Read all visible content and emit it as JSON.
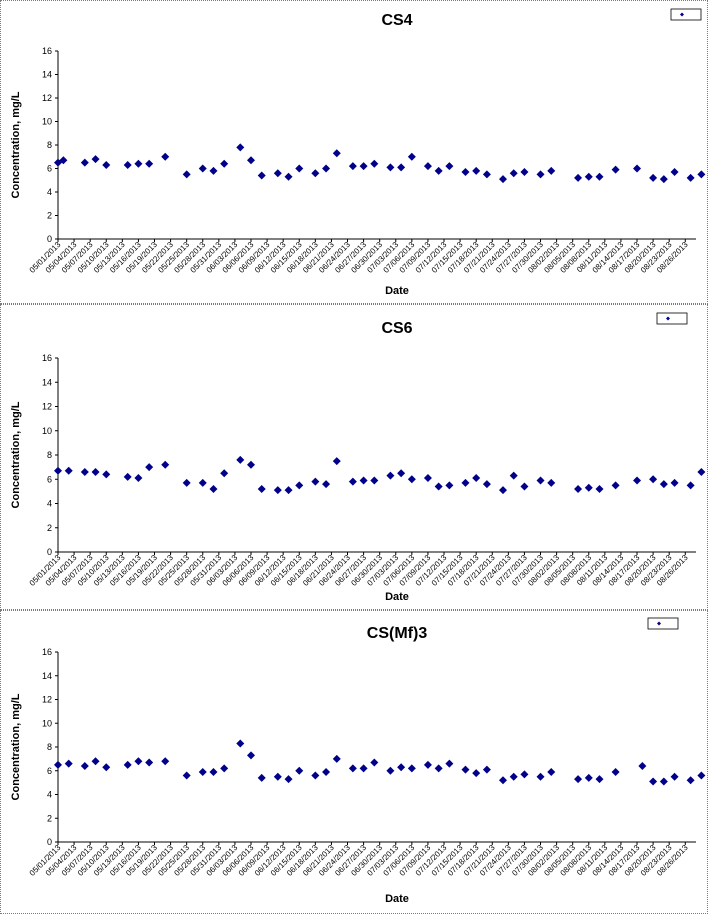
{
  "chart_data": [
    {
      "type": "scatter",
      "title": "CS4",
      "xlabel": "Date",
      "ylabel": "Concentration, mg/L",
      "ylim": [
        0,
        16
      ],
      "yticks": [
        0,
        2,
        4,
        6,
        8,
        10,
        12,
        14,
        16
      ],
      "xlim": [
        "2013-05-01",
        "2013-08-28"
      ],
      "x_tick_labels": [
        "05/01/2013",
        "05/04/2013",
        "05/07/2013",
        "05/10/2013",
        "05/13/2013",
        "05/16/2013",
        "05/19/2013",
        "05/22/2013",
        "05/25/2013",
        "05/28/2013",
        "05/31/2013",
        "06/03/2013",
        "06/06/2013",
        "06/09/2013",
        "06/12/2013",
        "06/15/2013",
        "06/18/2013",
        "06/21/2013",
        "06/24/2013",
        "06/27/2013",
        "06/30/2013",
        "07/03/2013",
        "07/06/2013",
        "07/09/2013",
        "07/12/2013",
        "07/15/2013",
        "07/18/2013",
        "07/21/2013",
        "07/24/2013",
        "07/27/2013",
        "07/30/2013",
        "08/02/2013",
        "08/05/2013",
        "08/08/2013",
        "08/11/2013",
        "08/14/2013",
        "08/17/2013",
        "08/20/2013",
        "08/23/2013",
        "08/26/2013"
      ],
      "grid": false,
      "legend_position": "top-right",
      "legend_entries": [
        ""
      ],
      "marker": "diamond",
      "color": "#00008b",
      "series": [
        {
          "points": [
            [
              "2013-05-01",
              6.5
            ],
            [
              "2013-05-02",
              6.7
            ],
            [
              "2013-05-06",
              6.5
            ],
            [
              "2013-05-08",
              6.8
            ],
            [
              "2013-05-10",
              6.3
            ],
            [
              "2013-05-14",
              6.3
            ],
            [
              "2013-05-16",
              6.4
            ],
            [
              "2013-05-18",
              6.4
            ],
            [
              "2013-05-21",
              7.0
            ],
            [
              "2013-05-25",
              5.5
            ],
            [
              "2013-05-28",
              6.0
            ],
            [
              "2013-05-30",
              5.8
            ],
            [
              "2013-06-01",
              6.4
            ],
            [
              "2013-06-04",
              7.8
            ],
            [
              "2013-06-06",
              6.7
            ],
            [
              "2013-06-08",
              5.4
            ],
            [
              "2013-06-11",
              5.6
            ],
            [
              "2013-06-13",
              5.3
            ],
            [
              "2013-06-15",
              6.0
            ],
            [
              "2013-06-18",
              5.6
            ],
            [
              "2013-06-20",
              6.0
            ],
            [
              "2013-06-22",
              7.3
            ],
            [
              "2013-06-25",
              6.2
            ],
            [
              "2013-06-27",
              6.2
            ],
            [
              "2013-06-29",
              6.4
            ],
            [
              "2013-07-02",
              6.1
            ],
            [
              "2013-07-04",
              6.1
            ],
            [
              "2013-07-06",
              7.0
            ],
            [
              "2013-07-09",
              6.2
            ],
            [
              "2013-07-11",
              5.8
            ],
            [
              "2013-07-13",
              6.2
            ],
            [
              "2013-07-16",
              5.7
            ],
            [
              "2013-07-18",
              5.8
            ],
            [
              "2013-07-20",
              5.5
            ],
            [
              "2013-07-23",
              5.1
            ],
            [
              "2013-07-25",
              5.6
            ],
            [
              "2013-07-27",
              5.7
            ],
            [
              "2013-07-30",
              5.5
            ],
            [
              "2013-08-01",
              5.8
            ],
            [
              "2013-08-06",
              5.2
            ],
            [
              "2013-08-08",
              5.3
            ],
            [
              "2013-08-10",
              5.3
            ],
            [
              "2013-08-13",
              5.9
            ],
            [
              "2013-08-17",
              6.0
            ],
            [
              "2013-08-20",
              5.2
            ],
            [
              "2013-08-22",
              5.1
            ],
            [
              "2013-08-24",
              5.7
            ],
            [
              "2013-08-27",
              5.2
            ],
            [
              "2013-08-29",
              5.5
            ]
          ]
        }
      ]
    },
    {
      "type": "scatter",
      "title": "CS6",
      "xlabel": "Date",
      "ylabel": "Concentration, mg/L",
      "ylim": [
        0,
        16
      ],
      "yticks": [
        0,
        2,
        4,
        6,
        8,
        10,
        12,
        14,
        16
      ],
      "xlim": [
        "2013-05-01",
        "2013-08-28"
      ],
      "x_tick_labels": [
        "05/01/2013",
        "05/04/2013",
        "05/07/2013",
        "05/10/2013",
        "05/13/2013",
        "05/16/2013",
        "05/19/2013",
        "05/22/2013",
        "05/25/2013",
        "05/28/2013",
        "05/31/2013",
        "06/03/2013",
        "06/06/2013",
        "06/09/2013",
        "06/12/2013",
        "06/15/2013",
        "06/18/2013",
        "06/21/2013",
        "06/24/2013",
        "06/27/2013",
        "06/30/2013",
        "07/03/2013",
        "07/06/2013",
        "07/09/2013",
        "07/12/2013",
        "07/15/2013",
        "07/18/2013",
        "07/21/2013",
        "07/24/2013",
        "07/27/2013",
        "07/30/2013",
        "08/02/2013",
        "08/05/2013",
        "08/08/2013",
        "08/11/2013",
        "08/14/2013",
        "08/17/2013",
        "08/20/2013",
        "08/23/2013",
        "08/26/2013"
      ],
      "grid": false,
      "legend_position": "top-right",
      "legend_entries": [
        ""
      ],
      "marker": "diamond",
      "color": "#00008b",
      "series": [
        {
          "points": [
            [
              "2013-05-01",
              6.7
            ],
            [
              "2013-05-03",
              6.7
            ],
            [
              "2013-05-06",
              6.6
            ],
            [
              "2013-05-08",
              6.6
            ],
            [
              "2013-05-10",
              6.4
            ],
            [
              "2013-05-14",
              6.2
            ],
            [
              "2013-05-16",
              6.1
            ],
            [
              "2013-05-18",
              7.0
            ],
            [
              "2013-05-21",
              7.2
            ],
            [
              "2013-05-25",
              5.7
            ],
            [
              "2013-05-28",
              5.7
            ],
            [
              "2013-05-30",
              5.2
            ],
            [
              "2013-06-01",
              6.5
            ],
            [
              "2013-06-04",
              7.6
            ],
            [
              "2013-06-06",
              7.2
            ],
            [
              "2013-06-08",
              5.2
            ],
            [
              "2013-06-11",
              5.1
            ],
            [
              "2013-06-13",
              5.1
            ],
            [
              "2013-06-15",
              5.5
            ],
            [
              "2013-06-18",
              5.8
            ],
            [
              "2013-06-20",
              5.6
            ],
            [
              "2013-06-22",
              7.5
            ],
            [
              "2013-06-25",
              5.8
            ],
            [
              "2013-06-27",
              5.9
            ],
            [
              "2013-06-29",
              5.9
            ],
            [
              "2013-07-02",
              6.3
            ],
            [
              "2013-07-04",
              6.5
            ],
            [
              "2013-07-06",
              6.0
            ],
            [
              "2013-07-09",
              6.1
            ],
            [
              "2013-07-11",
              5.4
            ],
            [
              "2013-07-13",
              5.5
            ],
            [
              "2013-07-16",
              5.7
            ],
            [
              "2013-07-18",
              6.1
            ],
            [
              "2013-07-20",
              5.6
            ],
            [
              "2013-07-23",
              5.1
            ],
            [
              "2013-07-25",
              6.3
            ],
            [
              "2013-07-27",
              5.4
            ],
            [
              "2013-07-30",
              5.9
            ],
            [
              "2013-08-01",
              5.7
            ],
            [
              "2013-08-06",
              5.2
            ],
            [
              "2013-08-08",
              5.3
            ],
            [
              "2013-08-10",
              5.2
            ],
            [
              "2013-08-13",
              5.5
            ],
            [
              "2013-08-17",
              5.9
            ],
            [
              "2013-08-20",
              6.0
            ],
            [
              "2013-08-22",
              5.6
            ],
            [
              "2013-08-24",
              5.7
            ],
            [
              "2013-08-27",
              5.5
            ],
            [
              "2013-08-29",
              6.6
            ]
          ]
        }
      ]
    },
    {
      "type": "scatter",
      "title": "CS(Mf)3",
      "xlabel": "Date",
      "ylabel": "Concentration, mg/L",
      "ylim": [
        0,
        16
      ],
      "yticks": [
        0,
        2,
        4,
        6,
        8,
        10,
        12,
        14,
        16
      ],
      "xlim": [
        "2013-05-01",
        "2013-08-28"
      ],
      "x_tick_labels": [
        "05/01/2013",
        "05/04/2013",
        "05/07/2013",
        "05/10/2013",
        "05/13/2013",
        "05/16/2013",
        "05/19/2013",
        "05/22/2013",
        "05/25/2013",
        "05/28/2013",
        "05/31/2013",
        "06/03/2013",
        "06/06/2013",
        "06/09/2013",
        "06/12/2013",
        "06/15/2013",
        "06/18/2013",
        "06/21/2013",
        "06/24/2013",
        "06/27/2013",
        "06/30/2013",
        "07/03/2013",
        "07/06/2013",
        "07/09/2013",
        "07/12/2013",
        "07/15/2013",
        "07/18/2013",
        "07/21/2013",
        "07/24/2013",
        "07/27/2013",
        "07/30/2013",
        "08/02/2013",
        "08/05/2013",
        "08/08/2013",
        "08/11/2013",
        "08/14/2013",
        "08/17/2013",
        "08/20/2013",
        "08/23/2013",
        "08/26/2013"
      ],
      "grid": false,
      "legend_position": "top-right",
      "legend_entries": [
        ""
      ],
      "marker": "diamond",
      "color": "#00008b",
      "series": [
        {
          "points": [
            [
              "2013-05-01",
              6.5
            ],
            [
              "2013-05-03",
              6.6
            ],
            [
              "2013-05-06",
              6.4
            ],
            [
              "2013-05-08",
              6.8
            ],
            [
              "2013-05-10",
              6.3
            ],
            [
              "2013-05-14",
              6.5
            ],
            [
              "2013-05-16",
              6.8
            ],
            [
              "2013-05-18",
              6.7
            ],
            [
              "2013-05-21",
              6.8
            ],
            [
              "2013-05-25",
              5.6
            ],
            [
              "2013-05-28",
              5.9
            ],
            [
              "2013-05-30",
              5.9
            ],
            [
              "2013-06-01",
              6.2
            ],
            [
              "2013-06-04",
              8.3
            ],
            [
              "2013-06-06",
              7.3
            ],
            [
              "2013-06-08",
              5.4
            ],
            [
              "2013-06-11",
              5.5
            ],
            [
              "2013-06-13",
              5.3
            ],
            [
              "2013-06-15",
              6.0
            ],
            [
              "2013-06-18",
              5.6
            ],
            [
              "2013-06-20",
              5.9
            ],
            [
              "2013-06-22",
              7.0
            ],
            [
              "2013-06-25",
              6.2
            ],
            [
              "2013-06-27",
              6.2
            ],
            [
              "2013-06-29",
              6.7
            ],
            [
              "2013-07-02",
              6.0
            ],
            [
              "2013-07-04",
              6.3
            ],
            [
              "2013-07-06",
              6.2
            ],
            [
              "2013-07-09",
              6.5
            ],
            [
              "2013-07-11",
              6.2
            ],
            [
              "2013-07-13",
              6.6
            ],
            [
              "2013-07-16",
              6.1
            ],
            [
              "2013-07-18",
              5.8
            ],
            [
              "2013-07-20",
              6.1
            ],
            [
              "2013-07-23",
              5.2
            ],
            [
              "2013-07-25",
              5.5
            ],
            [
              "2013-07-27",
              5.7
            ],
            [
              "2013-07-30",
              5.5
            ],
            [
              "2013-08-01",
              5.9
            ],
            [
              "2013-08-06",
              5.3
            ],
            [
              "2013-08-08",
              5.4
            ],
            [
              "2013-08-10",
              5.3
            ],
            [
              "2013-08-13",
              5.9
            ],
            [
              "2013-08-18",
              6.4
            ],
            [
              "2013-08-20",
              5.1
            ],
            [
              "2013-08-22",
              5.1
            ],
            [
              "2013-08-24",
              5.5
            ],
            [
              "2013-08-27",
              5.2
            ],
            [
              "2013-08-29",
              5.6
            ]
          ]
        }
      ]
    }
  ]
}
